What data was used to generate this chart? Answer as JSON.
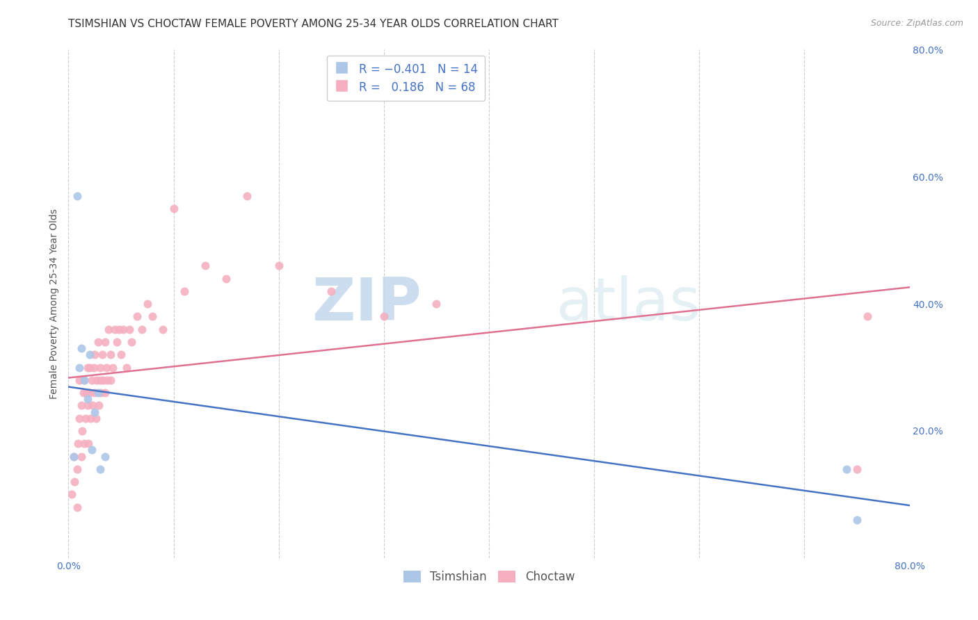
{
  "title": "TSIMSHIAN VS CHOCTAW FEMALE POVERTY AMONG 25-34 YEAR OLDS CORRELATION CHART",
  "source": "Source: ZipAtlas.com",
  "ylabel": "Female Poverty Among 25-34 Year Olds",
  "xlim": [
    0.0,
    0.8
  ],
  "ylim": [
    0.0,
    0.8
  ],
  "grid_color": "#cccccc",
  "background_color": "#ffffff",
  "watermark_zip": "ZIP",
  "watermark_atlas": "atlas",
  "tsimshian_color": "#adc6e8",
  "choctaw_color": "#f5afc0",
  "tsimshian_line_color": "#4472c4",
  "choctaw_line_color": "#e07090",
  "tsimshian_R": -0.401,
  "tsimshian_N": 14,
  "choctaw_R": 0.186,
  "choctaw_N": 68,
  "tsimshian_x": [
    0.005,
    0.008,
    0.01,
    0.012,
    0.015,
    0.018,
    0.02,
    0.022,
    0.025,
    0.028,
    0.03,
    0.035,
    0.74,
    0.75
  ],
  "tsimshian_y": [
    0.16,
    0.57,
    0.3,
    0.33,
    0.28,
    0.25,
    0.32,
    0.17,
    0.23,
    0.26,
    0.14,
    0.16,
    0.14,
    0.06
  ],
  "choctaw_x": [
    0.003,
    0.005,
    0.006,
    0.008,
    0.008,
    0.009,
    0.01,
    0.01,
    0.012,
    0.012,
    0.013,
    0.014,
    0.015,
    0.015,
    0.016,
    0.017,
    0.018,
    0.018,
    0.019,
    0.02,
    0.02,
    0.021,
    0.022,
    0.023,
    0.024,
    0.025,
    0.025,
    0.026,
    0.027,
    0.028,
    0.029,
    0.03,
    0.03,
    0.031,
    0.032,
    0.033,
    0.035,
    0.035,
    0.036,
    0.037,
    0.038,
    0.04,
    0.04,
    0.042,
    0.044,
    0.046,
    0.048,
    0.05,
    0.052,
    0.055,
    0.058,
    0.06,
    0.065,
    0.07,
    0.075,
    0.08,
    0.09,
    0.1,
    0.11,
    0.13,
    0.15,
    0.17,
    0.2,
    0.25,
    0.3,
    0.35,
    0.75,
    0.76
  ],
  "choctaw_y": [
    0.1,
    0.16,
    0.12,
    0.08,
    0.14,
    0.18,
    0.22,
    0.28,
    0.16,
    0.24,
    0.2,
    0.26,
    0.18,
    0.28,
    0.22,
    0.26,
    0.24,
    0.3,
    0.18,
    0.26,
    0.3,
    0.22,
    0.28,
    0.24,
    0.3,
    0.26,
    0.32,
    0.22,
    0.28,
    0.34,
    0.24,
    0.28,
    0.3,
    0.26,
    0.32,
    0.28,
    0.26,
    0.34,
    0.3,
    0.28,
    0.36,
    0.28,
    0.32,
    0.3,
    0.36,
    0.34,
    0.36,
    0.32,
    0.36,
    0.3,
    0.36,
    0.34,
    0.38,
    0.36,
    0.4,
    0.38,
    0.36,
    0.55,
    0.42,
    0.46,
    0.44,
    0.57,
    0.46,
    0.42,
    0.38,
    0.4,
    0.14,
    0.38
  ],
  "title_fontsize": 11,
  "axis_fontsize": 10,
  "tick_fontsize": 10,
  "legend_fontsize": 12,
  "tick_label_color": "#4472c4"
}
